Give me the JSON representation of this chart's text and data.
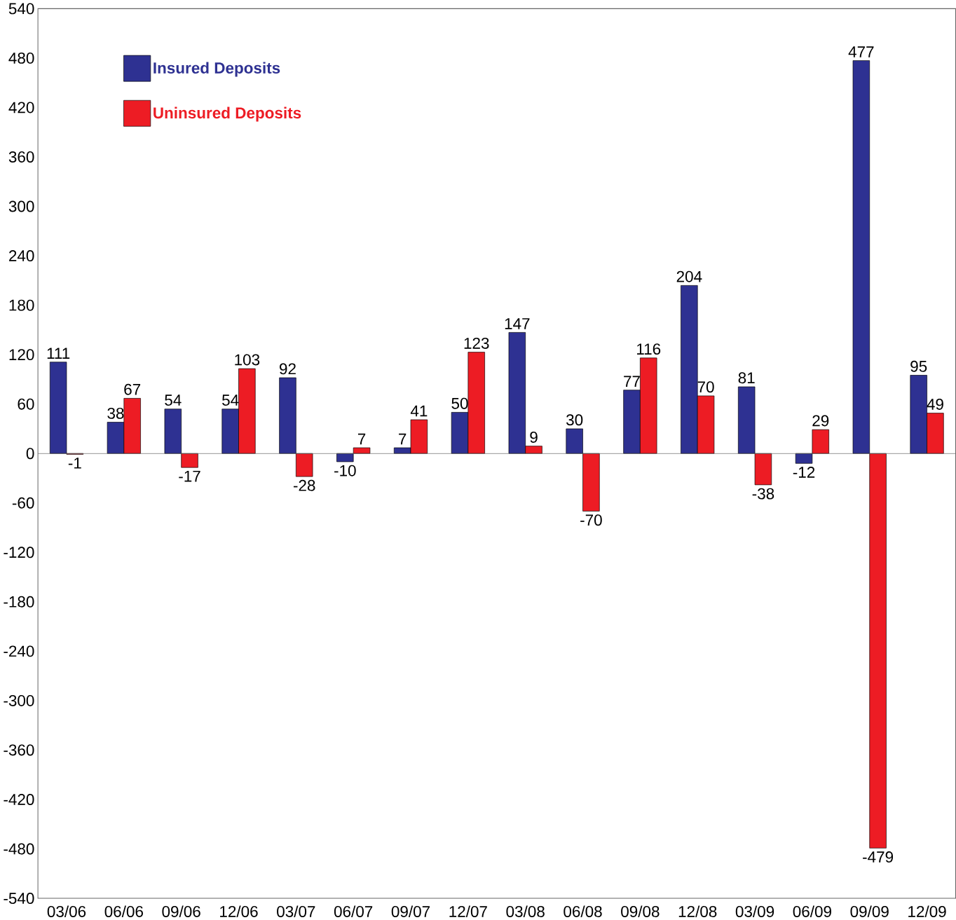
{
  "chart_data": {
    "type": "bar",
    "categories": [
      "03/06",
      "06/06",
      "09/06",
      "12/06",
      "03/07",
      "06/07",
      "09/07",
      "12/07",
      "03/08",
      "06/08",
      "09/08",
      "12/08",
      "03/09",
      "06/09",
      "09/09",
      "12/09"
    ],
    "series": [
      {
        "name": "Insured Deposits",
        "color": "#2e3192",
        "values": [
          111,
          38,
          54,
          54,
          92,
          -10,
          7,
          50,
          147,
          30,
          77,
          204,
          81,
          -12,
          477,
          95
        ]
      },
      {
        "name": "Uninsured Deposits",
        "color": "#ed1c24",
        "values": [
          -1,
          67,
          -17,
          103,
          -28,
          7,
          41,
          123,
          9,
          -70,
          116,
          70,
          -38,
          29,
          -479,
          49
        ]
      }
    ],
    "ylim": [
      -540,
      540
    ],
    "yticks": [
      -540,
      -480,
      -420,
      -360,
      -300,
      -240,
      -180,
      -120,
      -60,
      0,
      60,
      120,
      180,
      240,
      300,
      360,
      420,
      480,
      540
    ],
    "data_labels": true,
    "legend": "top left"
  }
}
